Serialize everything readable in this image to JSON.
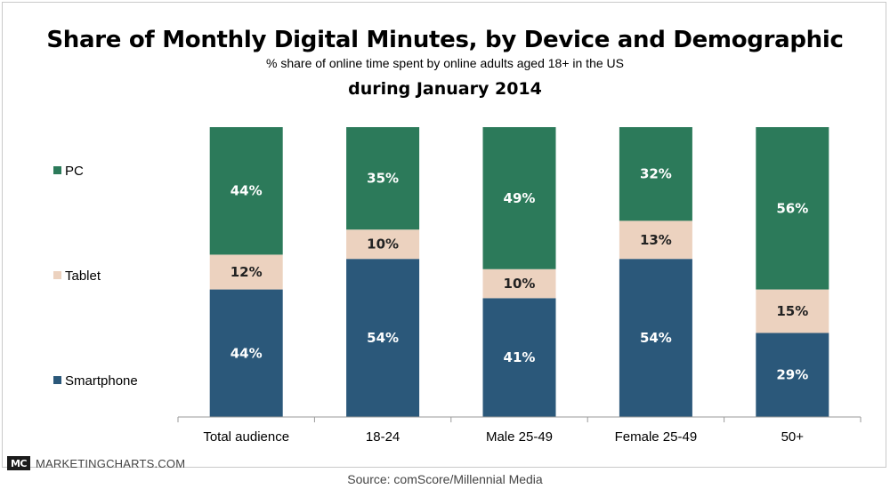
{
  "chart_data": {
    "type": "bar",
    "stacked": true,
    "title": "Share of Monthly Digital Minutes, by Device and Demographic",
    "subtitle": "% share of online time spent by online adults aged 18+ in the US",
    "subtitle2": "during January 2014",
    "categories": [
      "Total audience",
      "18-24",
      "Male 25-49",
      "Female 25-49",
      "50+"
    ],
    "series": [
      {
        "name": "Smartphone",
        "values": [
          44,
          54,
          41,
          54,
          29
        ],
        "labels": [
          "44%",
          "54%",
          "41%",
          "54%",
          "29%"
        ],
        "color": "#2b587a"
      },
      {
        "name": "Tablet",
        "values": [
          12,
          10,
          10,
          13,
          15
        ],
        "labels": [
          "12%",
          "10%",
          "10%",
          "13%",
          "15%"
        ],
        "color": "#ecd2bf"
      },
      {
        "name": "PC",
        "values": [
          44,
          35,
          49,
          32,
          56
        ],
        "labels": [
          "44%",
          "35%",
          "49%",
          "32%",
          "56%"
        ],
        "color": "#2c7a5a"
      }
    ],
    "legend_order": [
      "PC",
      "Tablet",
      "Smartphone"
    ],
    "legend_position": "left",
    "ylim": [
      0,
      100
    ],
    "grid": false
  },
  "brand": {
    "logo": "MC",
    "name": "MARKETINGCHARTS.COM"
  },
  "source": "Source: comScore/Millennial Media"
}
